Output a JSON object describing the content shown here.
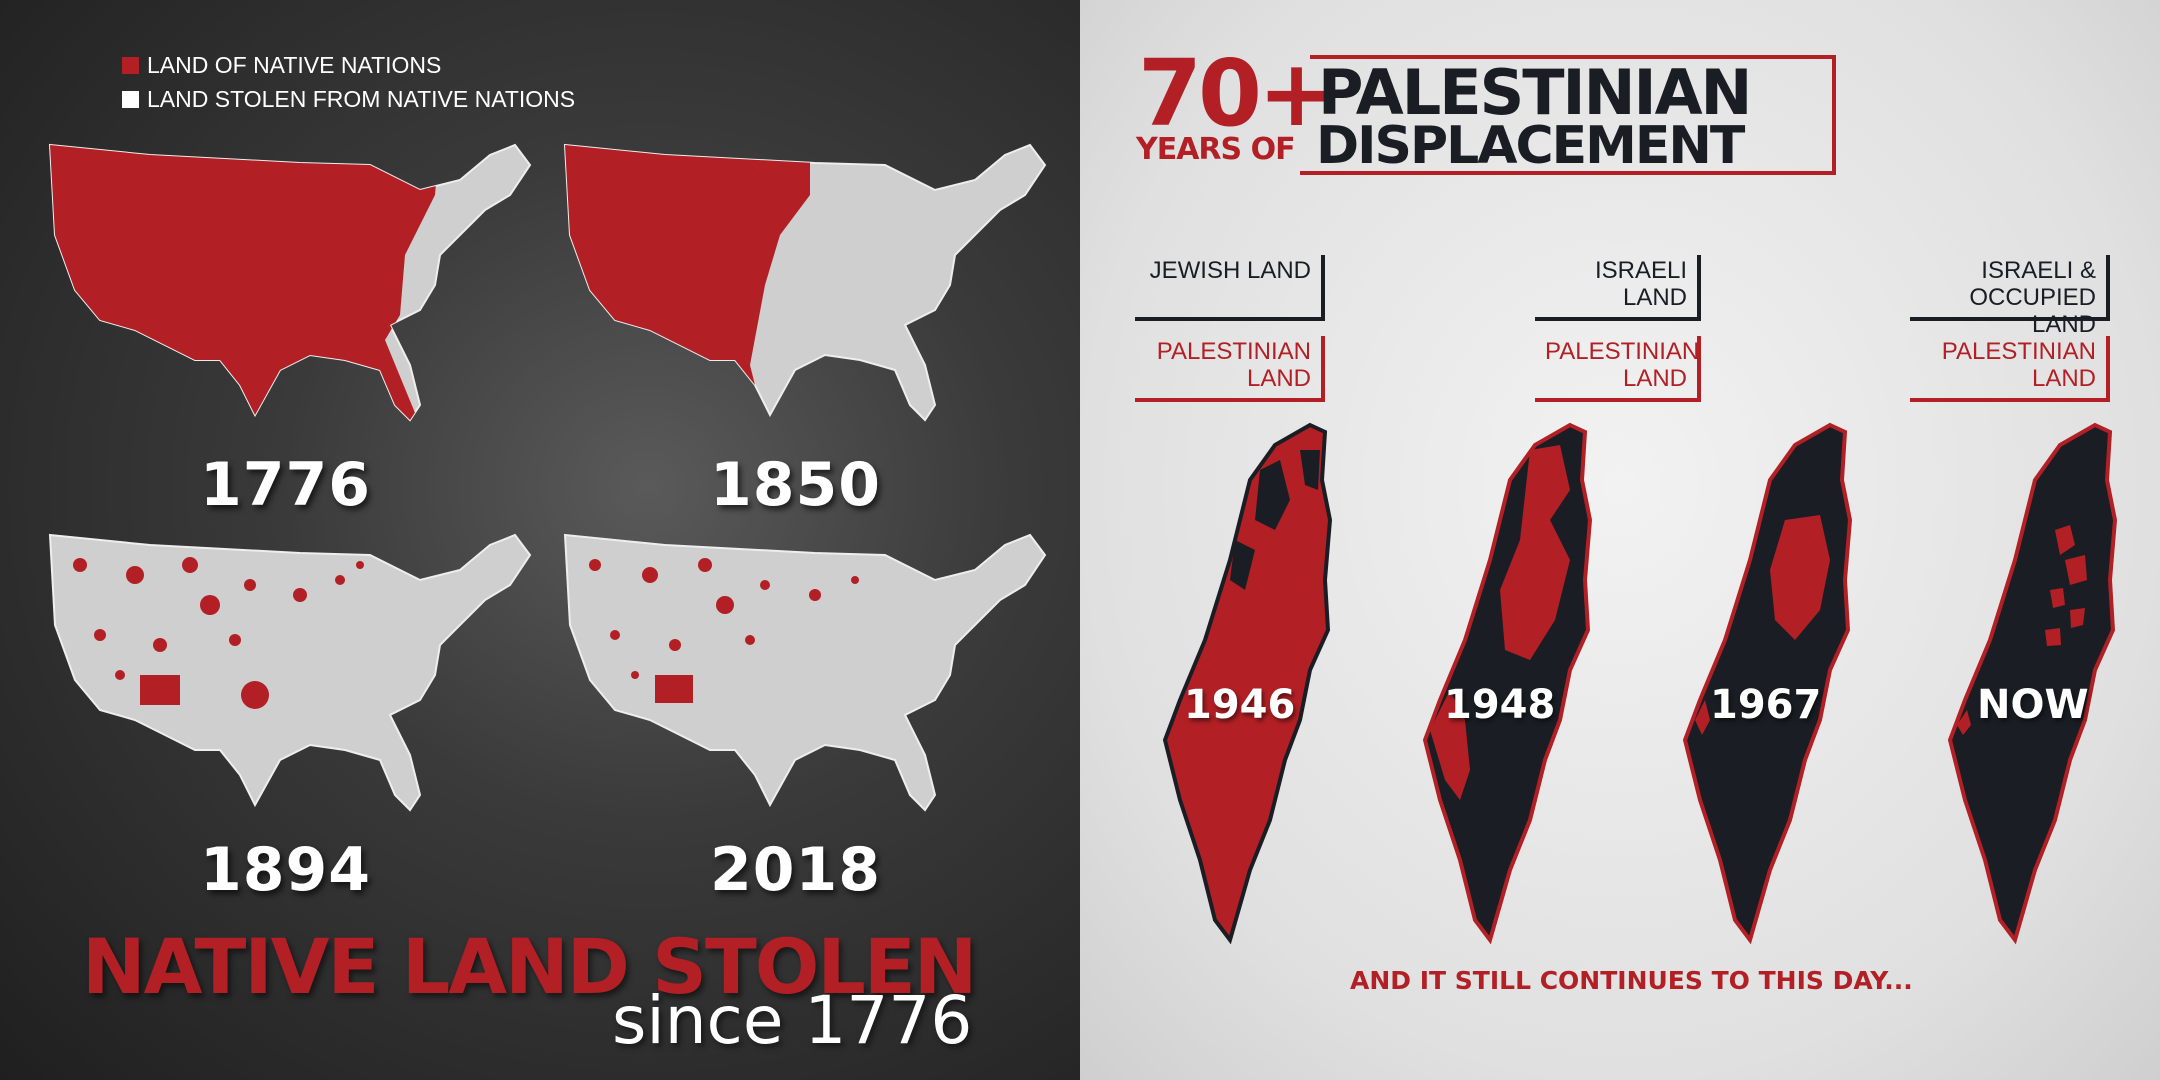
{
  "colors": {
    "native_red": "#b22025",
    "stolen_white": "#e6e6e6",
    "dark": "#1a1e24"
  },
  "left": {
    "legend": [
      {
        "label": "LAND OF NATIVE NATIONS",
        "color": "#b22025"
      },
      {
        "label": "LAND STOLEN FROM NATIVE NATIONS",
        "color": "#ffffff"
      }
    ],
    "maps": [
      {
        "year": "1776"
      },
      {
        "year": "1850"
      },
      {
        "year": "1894"
      },
      {
        "year": "2018"
      }
    ],
    "title": "NATIVE LAND STOLEN",
    "subtitle": "since 1776"
  },
  "right": {
    "title_number": "70+",
    "title_years": "YEARS OF",
    "title_line1": "PALESTINIAN",
    "title_line2": "DISPLACEMENT",
    "labels": [
      {
        "top": "JEWISH LAND",
        "bottom": "PALESTINIAN LAND"
      },
      {
        "top": "ISRAELI LAND",
        "bottom": "PALESTINIAN LAND"
      },
      {
        "top": "ISRAELI & OCCUPIED LAND",
        "bottom": "PALESTINIAN LAND"
      }
    ],
    "maps": [
      {
        "year": "1946"
      },
      {
        "year": "1948"
      },
      {
        "year": "1967"
      },
      {
        "year": "NOW"
      }
    ],
    "footer": "AND IT STILL CONTINUES TO THIS DAY..."
  }
}
